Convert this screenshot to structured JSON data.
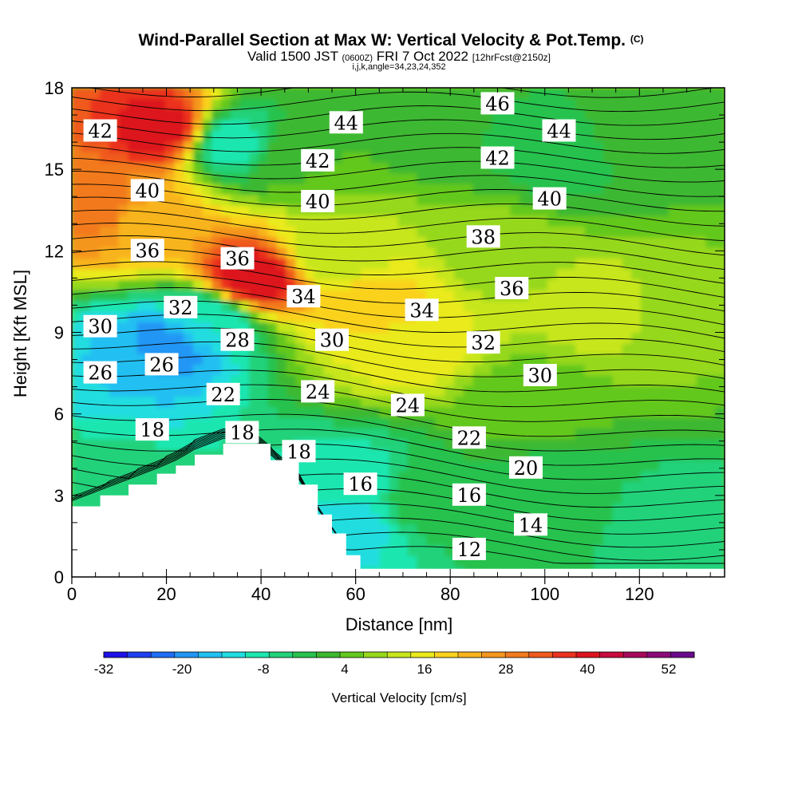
{
  "chart_data": {
    "type": "heatmap",
    "title": "Wind-Parallel Section at Max W: Vertical Velocity & Pot.Temp.",
    "title_mark": "(C)",
    "subtitle": {
      "valid": "Valid 1500 JST",
      "utc": "(0600Z)",
      "date": "FRI 7 Oct 2022",
      "forecast": "[12hrFcst@2150z]",
      "grid": "i,j,k,angle=34,23,24,352"
    },
    "xlabel": "Distance [nm]",
    "ylabel": "Height [Kft MSL]",
    "xlim": [
      0,
      138
    ],
    "ylim": [
      0,
      18
    ],
    "x_ticks": [
      "0",
      "20",
      "40",
      "60",
      "80",
      "100",
      "120"
    ],
    "y_ticks": [
      "0",
      "3",
      "6",
      "9",
      "12",
      "15",
      "18"
    ],
    "colorbar": {
      "label": "Vertical Velocity [cm/s]",
      "tick_labels": [
        "-32",
        "-20",
        "-8",
        "4",
        "16",
        "28",
        "40",
        "52"
      ],
      "colors": [
        "#1e10e6",
        "#1e3ff0",
        "#1f6ef5",
        "#2196f5",
        "#21bff2",
        "#20dde0",
        "#1ee6b0",
        "#22d27a",
        "#28c24e",
        "#3cb830",
        "#64c81e",
        "#96d81a",
        "#c8e61c",
        "#eaea1e",
        "#fad21e",
        "#f8b41e",
        "#f5961e",
        "#f27a1e",
        "#f05a1e",
        "#eb321e",
        "#dc141e",
        "#c80a3c",
        "#a80a5a",
        "#8c0a78",
        "#6a0a8c"
      ]
    },
    "terrain_height_kft": [
      {
        "x": 0,
        "y": 2.6
      },
      {
        "x": 6,
        "y": 3.0
      },
      {
        "x": 12,
        "y": 3.4
      },
      {
        "x": 18,
        "y": 3.8
      },
      {
        "x": 22,
        "y": 4.1
      },
      {
        "x": 26,
        "y": 4.5
      },
      {
        "x": 32,
        "y": 4.9
      },
      {
        "x": 38,
        "y": 4.9
      },
      {
        "x": 42,
        "y": 4.3
      },
      {
        "x": 48,
        "y": 3.4
      },
      {
        "x": 52,
        "y": 2.3
      },
      {
        "x": 55,
        "y": 1.6
      },
      {
        "x": 58,
        "y": 0.8
      },
      {
        "x": 61,
        "y": 0.3
      },
      {
        "x": 138,
        "y": 0.3
      }
    ],
    "velocity_field": [
      {
        "x": 19,
        "y": 16.5,
        "value": 50
      },
      {
        "x": 6,
        "y": 13.5,
        "value": 38
      },
      {
        "x": 15,
        "y": 13,
        "value": 30
      },
      {
        "x": 38,
        "y": 11,
        "value": 52
      },
      {
        "x": 34,
        "y": 16,
        "value": -6
      },
      {
        "x": 20,
        "y": 8.5,
        "value": -18
      },
      {
        "x": 8,
        "y": 7.8,
        "value": -12
      },
      {
        "x": 29,
        "y": 9.5,
        "value": -8
      },
      {
        "x": 65,
        "y": 10,
        "value": 26
      },
      {
        "x": 72,
        "y": 8.5,
        "value": 22
      },
      {
        "x": 55,
        "y": 12,
        "value": 16
      },
      {
        "x": 90,
        "y": 12,
        "value": 14
      },
      {
        "x": 112,
        "y": 10,
        "value": 18
      },
      {
        "x": 130,
        "y": 10,
        "value": 12
      },
      {
        "x": 82,
        "y": 16.5,
        "value": 4
      },
      {
        "x": 104,
        "y": 15.5,
        "value": 2
      },
      {
        "x": 47,
        "y": 15.5,
        "value": 8
      },
      {
        "x": 120,
        "y": 16,
        "value": 6
      },
      {
        "x": 75,
        "y": 3,
        "value": 4
      },
      {
        "x": 100,
        "y": 3,
        "value": 2
      },
      {
        "x": 128,
        "y": 2,
        "value": -2
      },
      {
        "x": 58,
        "y": 2,
        "value": -10
      },
      {
        "x": 60,
        "y": 3.5,
        "value": -6
      },
      {
        "x": 95,
        "y": 6.5,
        "value": 10
      },
      {
        "x": 5,
        "y": 3.5,
        "value": -2
      }
    ],
    "contour_labels": [
      {
        "text": "42",
        "x": 6,
        "y": 16.4
      },
      {
        "text": "40",
        "x": 16,
        "y": 14.2
      },
      {
        "text": "36",
        "x": 16,
        "y": 12.0
      },
      {
        "text": "36",
        "x": 35,
        "y": 11.7
      },
      {
        "text": "32",
        "x": 23,
        "y": 9.9
      },
      {
        "text": "30",
        "x": 6,
        "y": 9.2
      },
      {
        "text": "28",
        "x": 35,
        "y": 8.7
      },
      {
        "text": "26",
        "x": 6,
        "y": 7.5
      },
      {
        "text": "26",
        "x": 19,
        "y": 7.8
      },
      {
        "text": "22",
        "x": 32,
        "y": 6.7
      },
      {
        "text": "18",
        "x": 17,
        "y": 5.4
      },
      {
        "text": "18",
        "x": 36,
        "y": 5.3
      },
      {
        "text": "18",
        "x": 48,
        "y": 4.6
      },
      {
        "text": "16",
        "x": 61,
        "y": 3.4
      },
      {
        "text": "44",
        "x": 58,
        "y": 16.7
      },
      {
        "text": "42",
        "x": 52,
        "y": 15.3
      },
      {
        "text": "40",
        "x": 52,
        "y": 13.8
      },
      {
        "text": "34",
        "x": 49,
        "y": 10.3
      },
      {
        "text": "30",
        "x": 55,
        "y": 8.7
      },
      {
        "text": "24",
        "x": 52,
        "y": 6.8
      },
      {
        "text": "24",
        "x": 71,
        "y": 6.3
      },
      {
        "text": "34",
        "x": 74,
        "y": 9.8
      },
      {
        "text": "46",
        "x": 90,
        "y": 17.4
      },
      {
        "text": "44",
        "x": 103,
        "y": 16.4
      },
      {
        "text": "42",
        "x": 90,
        "y": 15.4
      },
      {
        "text": "40",
        "x": 101,
        "y": 13.9
      },
      {
        "text": "38",
        "x": 87,
        "y": 12.5
      },
      {
        "text": "36",
        "x": 93,
        "y": 10.6
      },
      {
        "text": "32",
        "x": 87,
        "y": 8.6
      },
      {
        "text": "30",
        "x": 99,
        "y": 7.4
      },
      {
        "text": "22",
        "x": 84,
        "y": 5.1
      },
      {
        "text": "20",
        "x": 96,
        "y": 4.0
      },
      {
        "text": "16",
        "x": 84,
        "y": 3.0
      },
      {
        "text": "14",
        "x": 97,
        "y": 1.9
      },
      {
        "text": "12",
        "x": 84,
        "y": 1.0
      }
    ],
    "theta_contour_values": [
      12,
      14,
      16,
      18,
      20,
      22,
      24,
      26,
      28,
      30,
      32,
      34,
      36,
      38,
      40,
      42,
      44,
      46
    ]
  }
}
